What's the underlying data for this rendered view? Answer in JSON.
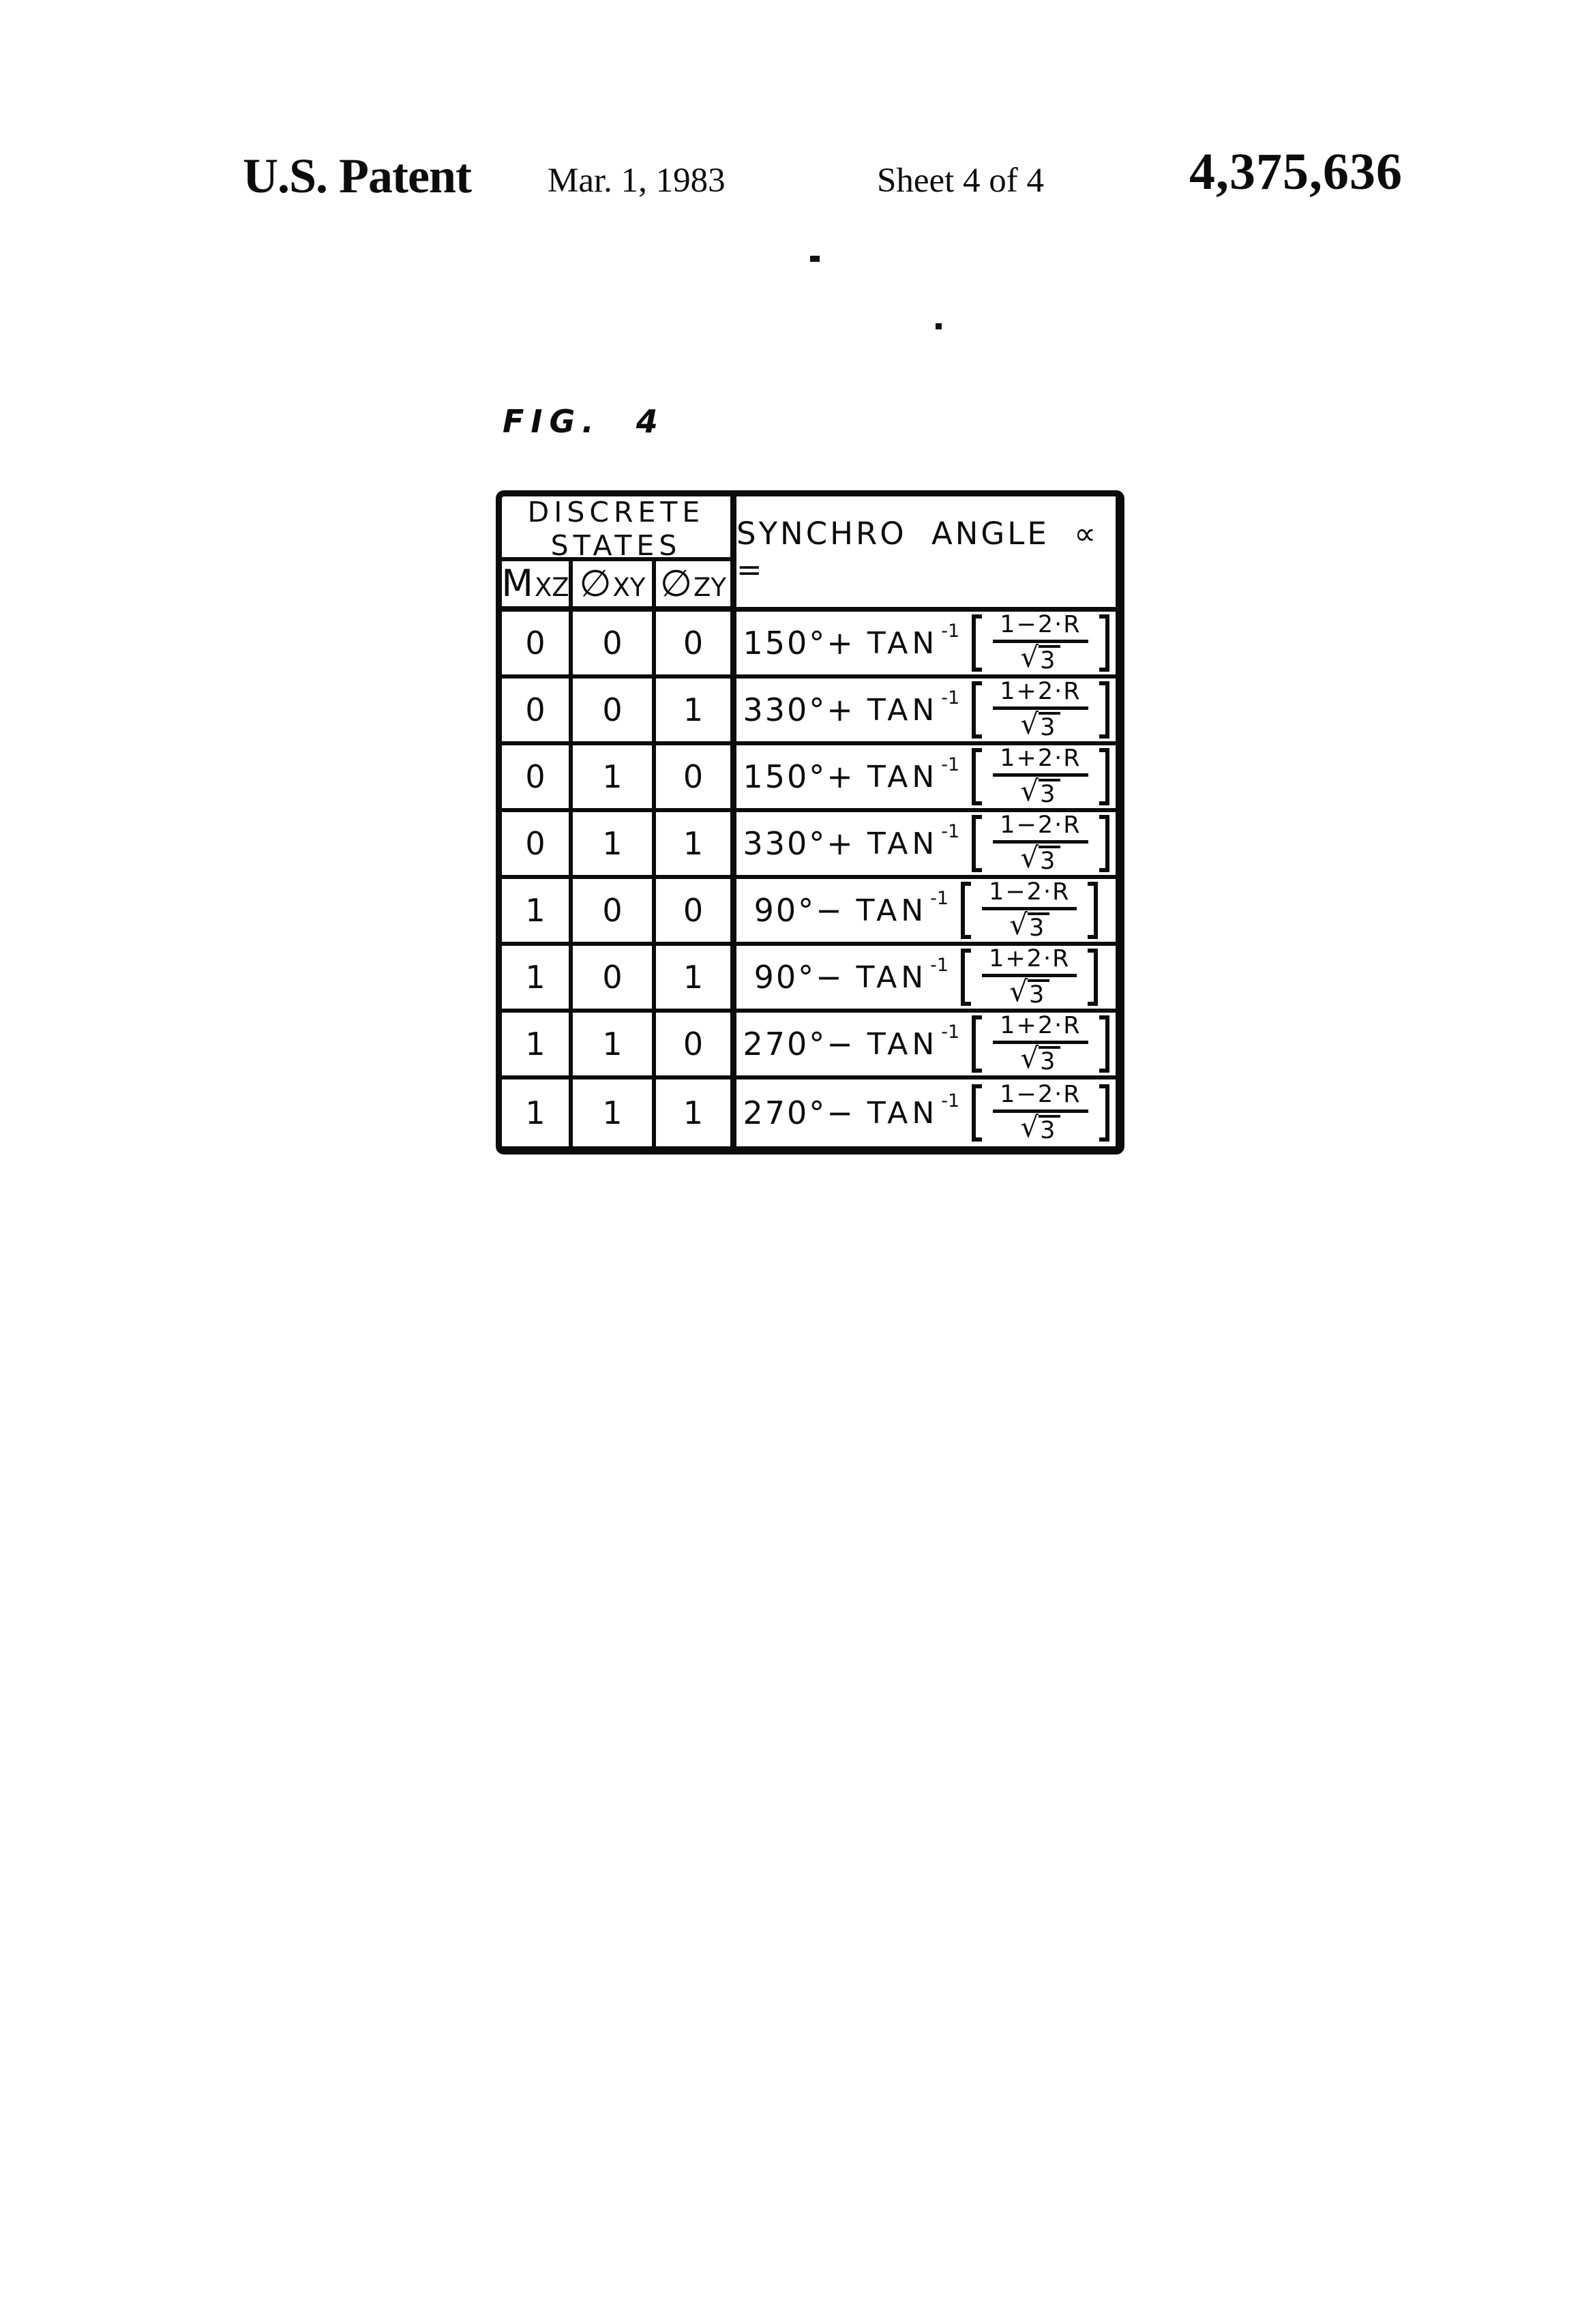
{
  "header": {
    "title": "U.S. Patent",
    "date": "Mar. 1, 1983",
    "sheet": "Sheet 4 of 4",
    "patent_number": "4,375,636"
  },
  "figure_label": "FIG. 4",
  "table": {
    "discrete_line1": "DISCRETE",
    "discrete_line2": "STATES",
    "synchro_label": "SYNCHRO ANGLE ∝ =",
    "columns": [
      {
        "main": "M",
        "sub": "XZ"
      },
      {
        "main": "∅",
        "sub": "XY"
      },
      {
        "main": "∅",
        "sub": "ZY"
      }
    ],
    "formula": {
      "tan": "TAN",
      "exponent": "-1",
      "radical": "√",
      "radicand": "3"
    },
    "rows": [
      {
        "mxz": "0",
        "phi_xy": "0",
        "phi_zy": "0",
        "angle": "150°+",
        "numerator": "1−2·R"
      },
      {
        "mxz": "0",
        "phi_xy": "0",
        "phi_zy": "1",
        "angle": "330°+",
        "numerator": "1+2·R"
      },
      {
        "mxz": "0",
        "phi_xy": "1",
        "phi_zy": "0",
        "angle": "150°+",
        "numerator": "1+2·R"
      },
      {
        "mxz": "0",
        "phi_xy": "1",
        "phi_zy": "1",
        "angle": "330°+",
        "numerator": "1−2·R"
      },
      {
        "mxz": "1",
        "phi_xy": "0",
        "phi_zy": "0",
        "angle": "90°−",
        "numerator": "1−2·R"
      },
      {
        "mxz": "1",
        "phi_xy": "0",
        "phi_zy": "1",
        "angle": "90°−",
        "numerator": "1+2·R"
      },
      {
        "mxz": "1",
        "phi_xy": "1",
        "phi_zy": "0",
        "angle": "270°−",
        "numerator": "1+2·R"
      },
      {
        "mxz": "1",
        "phi_xy": "1",
        "phi_zy": "1",
        "angle": "270°−",
        "numerator": "1−2·R"
      }
    ]
  }
}
